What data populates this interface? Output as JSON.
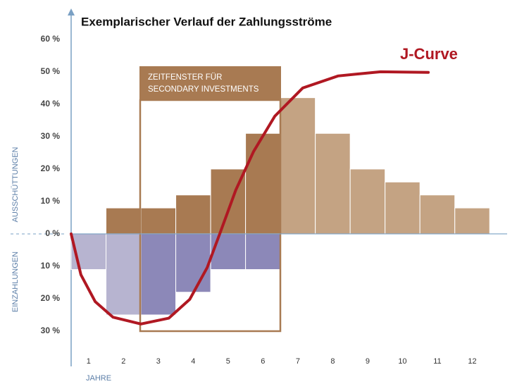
{
  "chart_data": {
    "type": "bar",
    "title": "Exemplarischer Verlauf der Zahlungsströme",
    "x_label": "JAHRE",
    "y_label_positive": "AUSSCHÜTTUNGEN",
    "y_label_negative": "EINZAHLUNGEN",
    "categories": [
      "1",
      "2",
      "3",
      "4",
      "5",
      "6",
      "7",
      "8",
      "9",
      "10",
      "11",
      "12"
    ],
    "series": [
      {
        "values": [
          null,
          8,
          8,
          12,
          20,
          31,
          42,
          31,
          20,
          16,
          12,
          8
        ],
        "colors": [
          "#a87a52",
          "#a87a52",
          "#a87a52",
          "#a87a52",
          "#a87a52",
          "#a87a52",
          "#c4a383",
          "#c4a383",
          "#c4a383",
          "#c4a383",
          "#c4a383",
          "#c4a383"
        ]
      },
      {
        "values": [
          -11,
          -25,
          -25,
          -18,
          -11,
          -11,
          null,
          null,
          null,
          null,
          null,
          null
        ],
        "colors": [
          "#b7b4d0",
          "#b7b4d0",
          "#8c88b8",
          "#8c88b8",
          "#8c88b8",
          "#8c88b8",
          "#8c88b8",
          "#8c88b8",
          "#8c88b8",
          "#8c88b8",
          "#8c88b8",
          "#8c88b8"
        ]
      }
    ],
    "curve": {
      "type": "line",
      "label": "J-Curve",
      "color": "#b01822",
      "x": [
        0.5,
        0.78,
        1.19,
        1.7,
        2.5,
        3.3,
        3.9,
        4.4,
        4.76,
        5.22,
        5.73,
        6.34,
        7.14,
        8.15,
        9.37,
        10.74
      ],
      "values": [
        0,
        -12.6,
        -20.9,
        -25.7,
        -27.8,
        -26,
        -20.2,
        -10.4,
        0,
        13.5,
        25.4,
        36.3,
        45,
        48.7,
        50,
        49.8
      ]
    },
    "window_label": [
      "ZEITFENSTER FÜR",
      "SECONDARY INVESTMENTS"
    ],
    "xlim": [
      0.5,
      13
    ],
    "ylim": [
      -40,
      68
    ],
    "yticks": [
      {
        "value": 60,
        "label": "60 %"
      },
      {
        "value": 50,
        "label": "50 %"
      },
      {
        "value": 40,
        "label": "40 %"
      },
      {
        "value": 30,
        "label": "30 %"
      },
      {
        "value": 20,
        "label": "20 %"
      },
      {
        "value": 10,
        "label": "10 %"
      },
      {
        "value": 0,
        "label": "0 %"
      },
      {
        "value": -10,
        "label": "10 %"
      },
      {
        "value": -20,
        "label": "20 %"
      },
      {
        "value": -30,
        "label": "30 %"
      }
    ],
    "grid": false
  }
}
